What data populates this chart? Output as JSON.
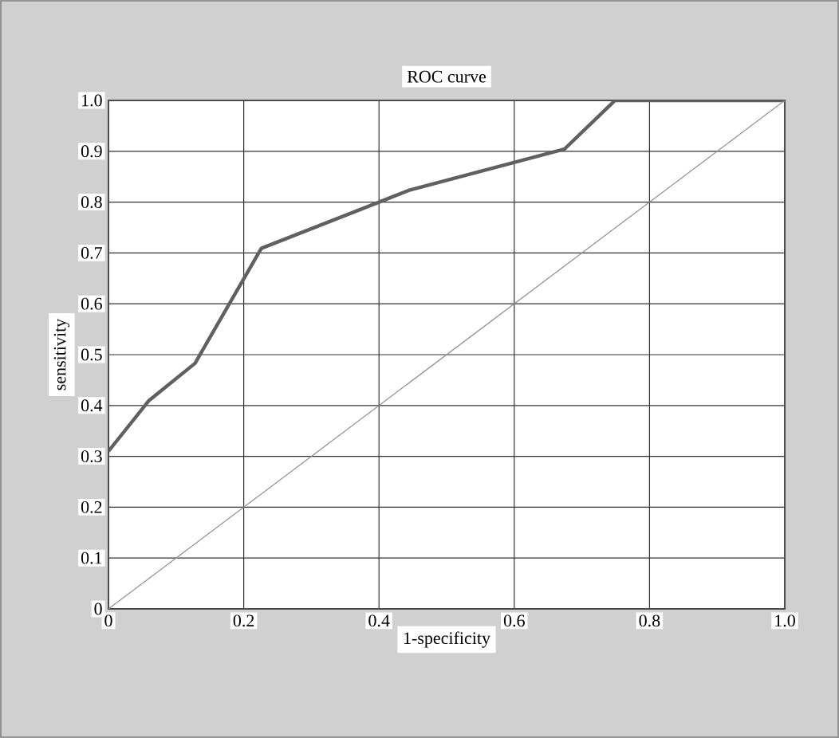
{
  "chart_data": {
    "type": "line",
    "title": "ROC curve",
    "xlabel": "1-specificity",
    "ylabel": "sensitivity",
    "series": [
      {
        "color": "#606060",
        "x": [
          0,
          0.06,
          0.128,
          0.226,
          0.4,
          0.446,
          0.674,
          0.749,
          1.0
        ],
        "values": [
          0.31,
          0.41,
          0.483,
          0.709,
          0.8,
          0.824,
          0.904,
          1.0,
          1.0
        ]
      },
      {
        "color": "#909090",
        "x": [
          0,
          1
        ],
        "values": [
          0,
          1
        ]
      }
    ],
    "xlim": [
      0,
      1
    ],
    "ylim": [
      0,
      1
    ],
    "xticks": [
      0,
      {
        "value": 0.2,
        "label": "0.2"
      },
      {
        "value": 0.4,
        "label": "0.4"
      },
      {
        "value": 0.6,
        "label": "0.6"
      },
      {
        "value": 0.8,
        "label": "0.8"
      },
      {
        "value": 1,
        "label": "1.0"
      }
    ],
    "yticks": [
      0,
      {
        "value": 0.1,
        "label": "0.1"
      },
      {
        "value": 0.2,
        "label": "0.2"
      },
      {
        "value": 0.3,
        "label": "0.3"
      },
      {
        "value": 0.4,
        "label": "0.4"
      },
      {
        "value": 0.5,
        "label": "0.5"
      },
      {
        "value": 0.6,
        "label": "0.6"
      },
      {
        "value": 0.7,
        "label": "0.7"
      },
      {
        "value": 0.8,
        "label": "0.8"
      },
      {
        "value": 0.9,
        "label": "0.9"
      },
      {
        "value": 1,
        "label": "1.0"
      }
    ],
    "grid": true,
    "marker": "none",
    "line_style": "solid"
  }
}
